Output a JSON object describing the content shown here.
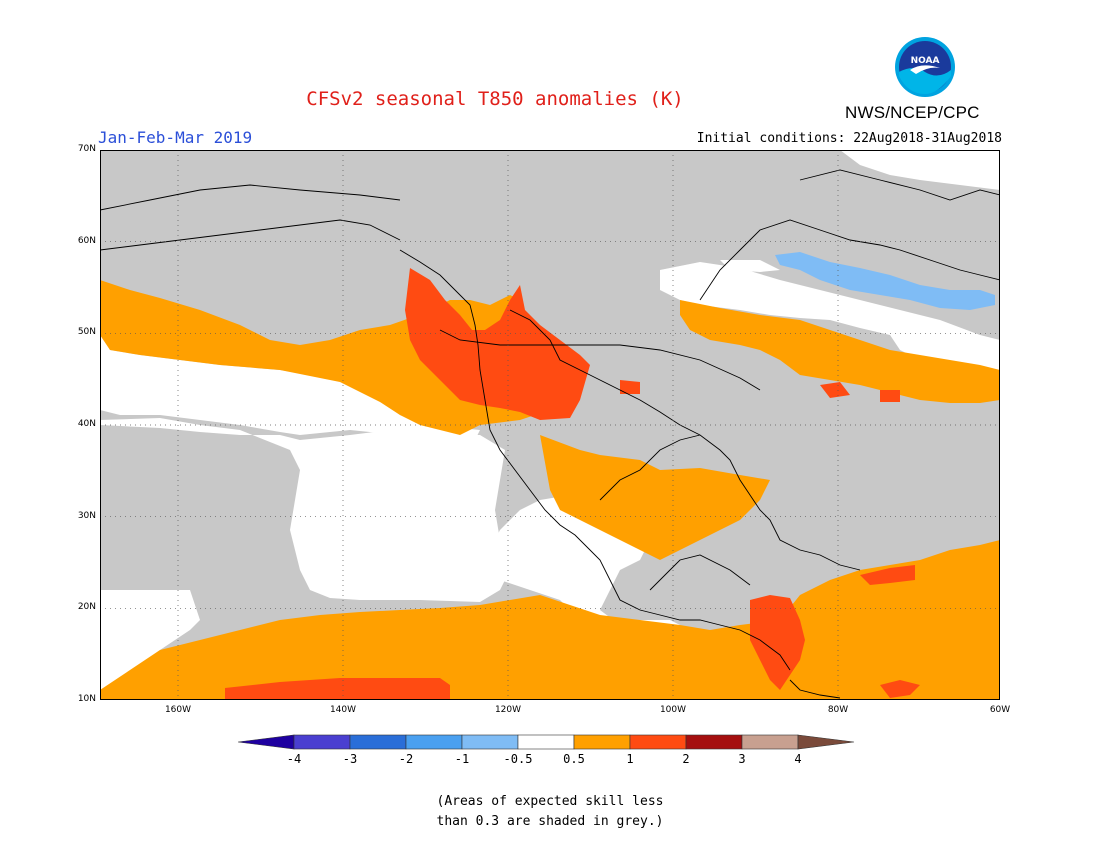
{
  "title": "CFSv2 seasonal T850 anomalies (K)",
  "period": "Jan-Feb-Mar 2019",
  "initial_conditions": "Initial conditions: 22Aug2018-31Aug2018",
  "agency": "NWS/NCEP/CPC",
  "logo_text": "NOAA",
  "lat_labels": [
    "70N",
    "60N",
    "50N",
    "40N",
    "30N",
    "20N",
    "10N"
  ],
  "lon_labels": [
    "160W",
    "140W",
    "120W",
    "100W",
    "80W",
    "60W"
  ],
  "colorbar": {
    "labels": [
      "-4",
      "-3",
      "-2",
      "-1",
      "-0.5",
      "0.5",
      "1",
      "2",
      "3",
      "4"
    ],
    "colors": [
      "#1e00a0",
      "#4a3fd0",
      "#2a6ed8",
      "#4aa0f0",
      "#7fbcf5",
      "#ffffff",
      "#ffa000",
      "#ff4b12",
      "#a50f0f",
      "#c8a090",
      "#7a4a3a"
    ]
  },
  "legend_colors": {
    "skill_grey": "#c8c8c8",
    "neutral": "#ffffff",
    "warm_1": "#ffa000",
    "warm_2": "#ff4b12",
    "cool_1": "#7fbcf5"
  },
  "note_lines": [
    "(Areas of expected skill less",
    "than 0.3 are shaded in grey.)"
  ]
}
